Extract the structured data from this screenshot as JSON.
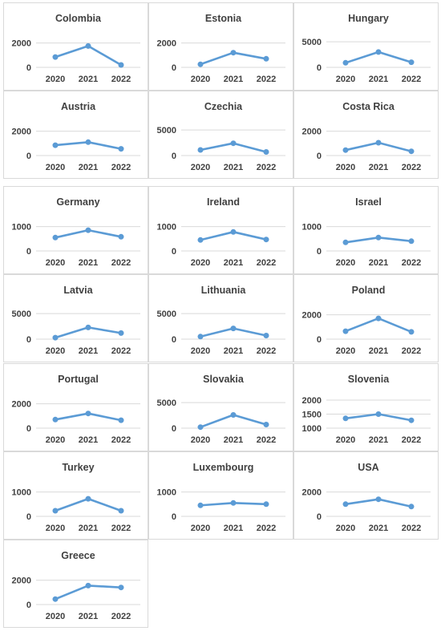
{
  "chart_data": [
    {
      "type": "line",
      "title": "Colombia",
      "x": [
        "2020",
        "2021",
        "2022"
      ],
      "values": [
        850,
        1750,
        200
      ],
      "yticks": [
        0,
        2000
      ],
      "ylim": [
        0,
        2300
      ]
    },
    {
      "type": "line",
      "title": "Estonia",
      "x": [
        "2020",
        "2021",
        "2022"
      ],
      "values": [
        250,
        1200,
        700
      ],
      "yticks": [
        0,
        2000
      ],
      "ylim": [
        0,
        2300
      ]
    },
    {
      "type": "line",
      "title": "Hungary",
      "x": [
        "2020",
        "2021",
        "2022"
      ],
      "values": [
        900,
        3000,
        1000
      ],
      "yticks": [
        0,
        5000
      ],
      "ylim": [
        0,
        5500
      ]
    },
    {
      "type": "line",
      "title": "Austria",
      "x": [
        "2020",
        "2021",
        "2022"
      ],
      "values": [
        850,
        1100,
        550
      ],
      "yticks": [
        0,
        2000
      ],
      "ylim": [
        0,
        2300
      ]
    },
    {
      "type": "line",
      "title": "Czechia",
      "x": [
        "2020",
        "2021",
        "2022"
      ],
      "values": [
        1100,
        2400,
        700
      ],
      "yticks": [
        0,
        5000
      ],
      "ylim": [
        0,
        5500
      ]
    },
    {
      "type": "line",
      "title": "Costa Rica",
      "x": [
        "2020",
        "2021",
        "2022"
      ],
      "values": [
        450,
        1050,
        350
      ],
      "yticks": [
        0,
        2000
      ],
      "ylim": [
        0,
        2300
      ]
    },
    {
      "type": "line",
      "title": "Germany",
      "x": [
        "2020",
        "2021",
        "2022"
      ],
      "values": [
        550,
        850,
        580
      ],
      "yticks": [
        0,
        1000
      ],
      "ylim": [
        0,
        1150
      ]
    },
    {
      "type": "line",
      "title": "Ireland",
      "x": [
        "2020",
        "2021",
        "2022"
      ],
      "values": [
        450,
        780,
        470
      ],
      "yticks": [
        0,
        1000
      ],
      "ylim": [
        0,
        1150
      ]
    },
    {
      "type": "line",
      "title": "Israel",
      "x": [
        "2020",
        "2021",
        "2022"
      ],
      "values": [
        350,
        550,
        400
      ],
      "yticks": [
        0,
        1000
      ],
      "ylim": [
        0,
        1150
      ]
    },
    {
      "type": "line",
      "title": "Latvia",
      "x": [
        "2020",
        "2021",
        "2022"
      ],
      "values": [
        300,
        2300,
        1200
      ],
      "yticks": [
        0,
        5000
      ],
      "ylim": [
        0,
        5500
      ]
    },
    {
      "type": "line",
      "title": "Lithuania",
      "x": [
        "2020",
        "2021",
        "2022"
      ],
      "values": [
        500,
        2100,
        700
      ],
      "yticks": [
        0,
        5000
      ],
      "ylim": [
        0,
        5500
      ]
    },
    {
      "type": "line",
      "title": "Poland",
      "x": [
        "2020",
        "2021",
        "2022"
      ],
      "values": [
        650,
        1700,
        600
      ],
      "yticks": [
        0,
        2000
      ],
      "ylim": [
        0,
        2300
      ]
    },
    {
      "type": "line",
      "title": "Portugal",
      "x": [
        "2020",
        "2021",
        "2022"
      ],
      "values": [
        700,
        1200,
        650
      ],
      "yticks": [
        0,
        2000
      ],
      "ylim": [
        0,
        2300
      ]
    },
    {
      "type": "line",
      "title": "Slovakia",
      "x": [
        "2020",
        "2021",
        "2022"
      ],
      "values": [
        200,
        2600,
        700
      ],
      "yticks": [
        0,
        5000
      ],
      "ylim": [
        0,
        5500
      ]
    },
    {
      "type": "line",
      "title": "Slovenia",
      "x": [
        "2020",
        "2021",
        "2022"
      ],
      "values": [
        1350,
        1500,
        1280
      ],
      "yticks": [
        1000,
        1500,
        2000
      ],
      "ylim": [
        1000,
        2000
      ]
    },
    {
      "type": "line",
      "title": "Turkey",
      "x": [
        "2020",
        "2021",
        "2022"
      ],
      "values": [
        230,
        720,
        230
      ],
      "yticks": [
        0,
        1000
      ],
      "ylim": [
        0,
        1150
      ]
    },
    {
      "type": "line",
      "title": "Luxembourg",
      "x": [
        "2020",
        "2021",
        "2022"
      ],
      "values": [
        450,
        550,
        500
      ],
      "yticks": [
        0,
        1000
      ],
      "ylim": [
        0,
        1150
      ]
    },
    {
      "type": "line",
      "title": "USA",
      "x": [
        "2020",
        "2021",
        "2022"
      ],
      "values": [
        1000,
        1400,
        800
      ],
      "yticks": [
        0,
        2000
      ],
      "ylim": [
        0,
        2300
      ]
    },
    {
      "type": "line",
      "title": "Greece",
      "x": [
        "2020",
        "2021",
        "2022"
      ],
      "values": [
        450,
        1550,
        1400
      ],
      "yticks": [
        0,
        2000
      ],
      "ylim": [
        0,
        2300
      ]
    }
  ],
  "colors": {
    "series": "#5b9bd5",
    "gridline": "#d9d9d9",
    "text": "#404040",
    "border": "#d9d9d9"
  }
}
